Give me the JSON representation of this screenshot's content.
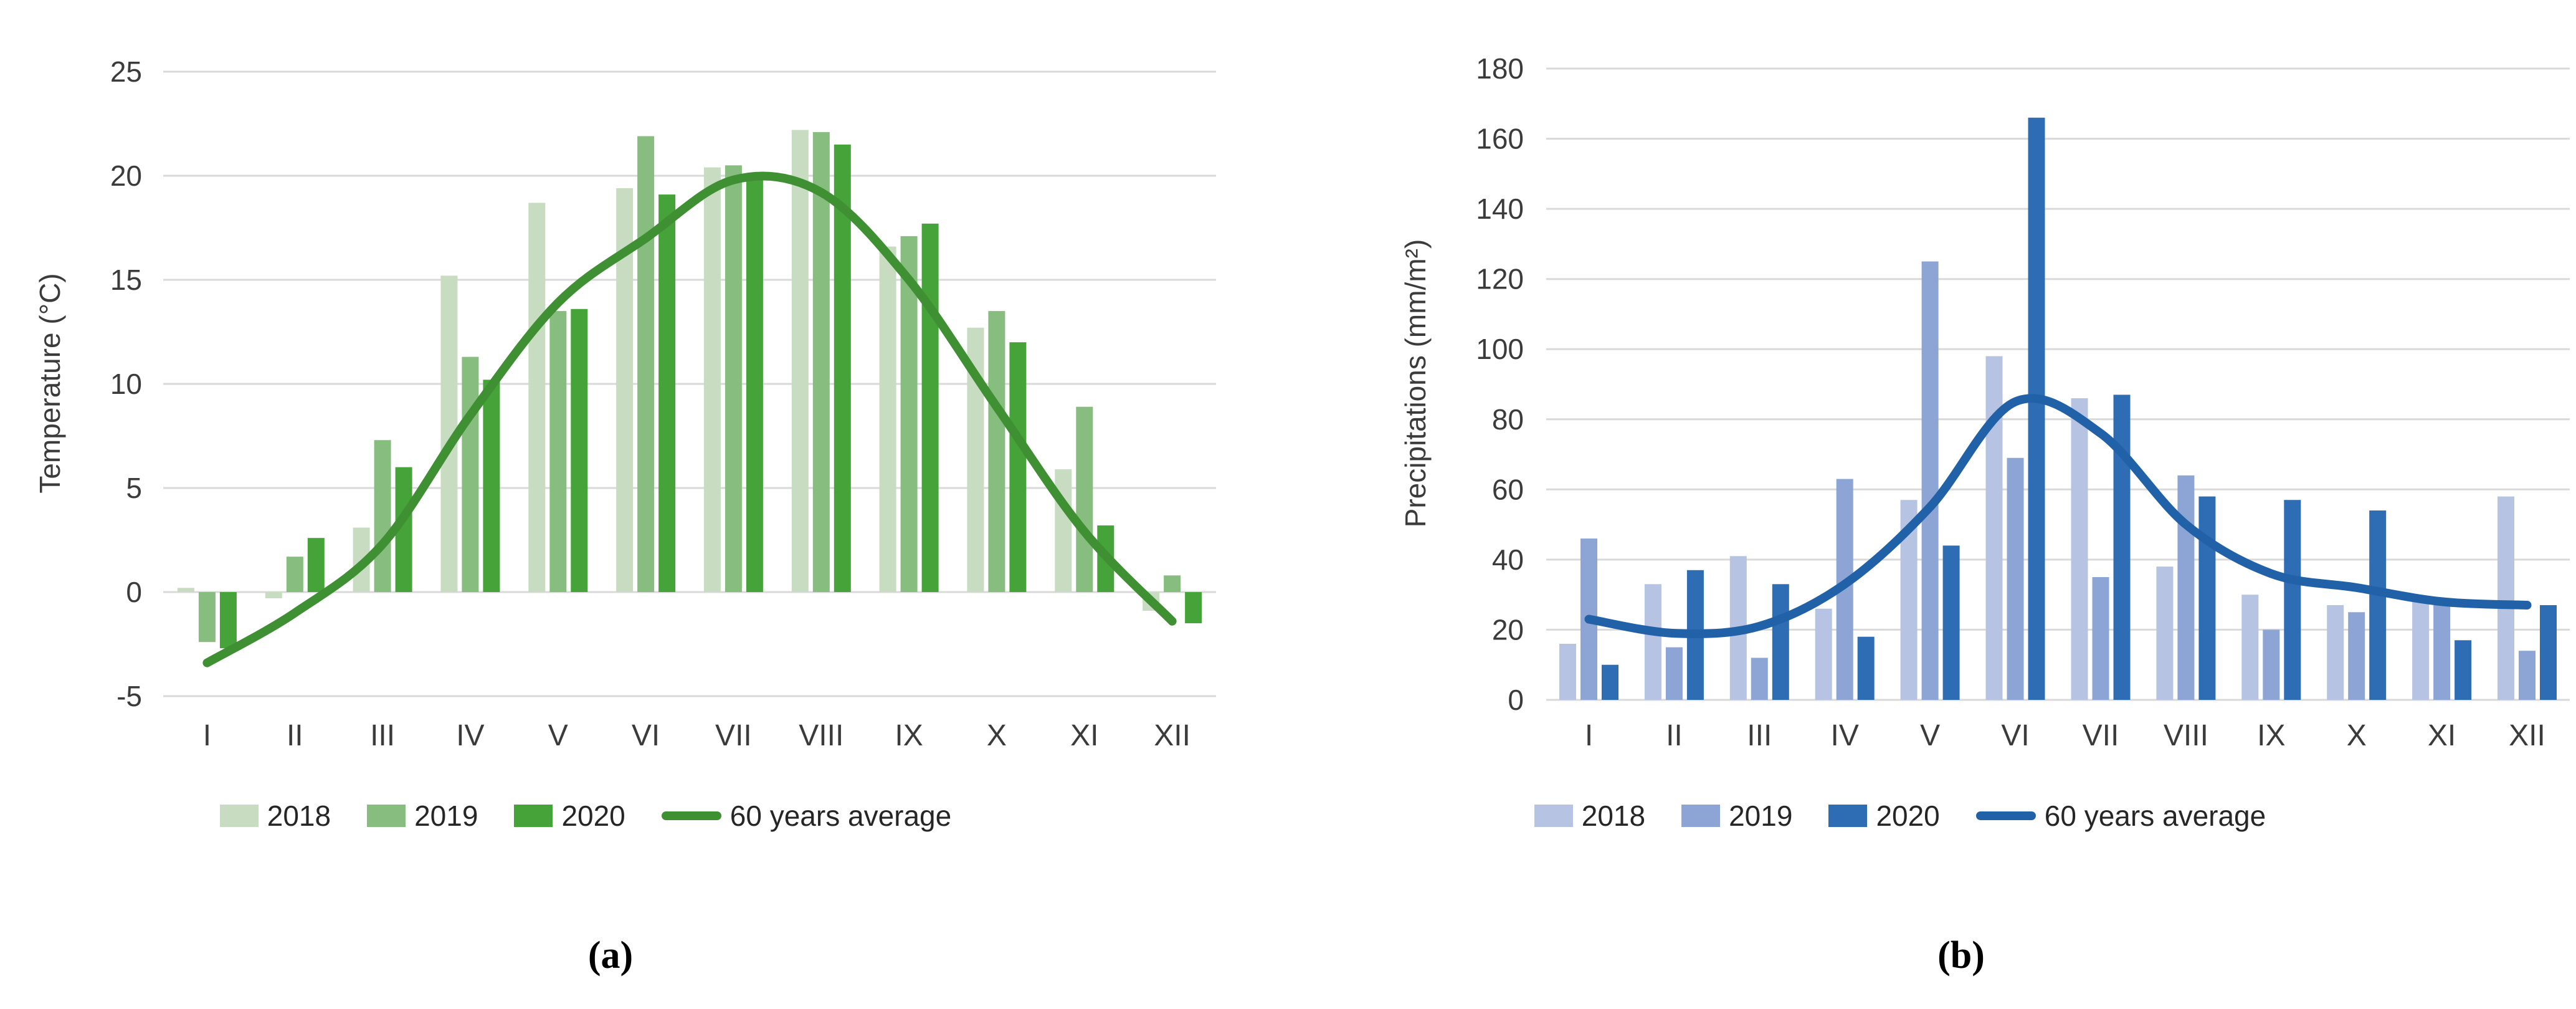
{
  "figure": {
    "caption_a": "(a)",
    "caption_b": "(b)"
  },
  "chart_data": [
    {
      "id": "a",
      "type": "bar+line",
      "title": "",
      "ylabel": "Temperature (°C)",
      "xlabel": "",
      "categories": [
        "I",
        "II",
        "III",
        "IV",
        "V",
        "VI",
        "VII",
        "VIII",
        "IX",
        "X",
        "XI",
        "XII"
      ],
      "yticks": [
        "25",
        "20",
        "15",
        "10",
        "5",
        "0",
        "-5"
      ],
      "ylim": [
        -5,
        25
      ],
      "ytick_step": 5,
      "grid": true,
      "legend_position": "bottom",
      "series": [
        {
          "name": "2018",
          "type": "bar",
          "color": "#c8dcc2",
          "values": [
            0.2,
            -0.3,
            3.1,
            15.2,
            18.7,
            19.4,
            20.4,
            22.2,
            16.6,
            12.7,
            5.9,
            -0.9
          ]
        },
        {
          "name": "2019",
          "type": "bar",
          "color": "#87bd7e",
          "values": [
            -2.4,
            1.7,
            7.3,
            11.3,
            13.5,
            21.9,
            20.5,
            22.1,
            17.1,
            13.5,
            8.9,
            0.8
          ]
        },
        {
          "name": "2020",
          "type": "bar",
          "color": "#45a339",
          "values": [
            -2.7,
            2.6,
            6.0,
            10.2,
            13.6,
            19.1,
            20.1,
            21.5,
            17.7,
            12.0,
            3.2,
            -1.5
          ]
        },
        {
          "name": "60 years average",
          "type": "line",
          "color": "#3f8f33",
          "values": [
            -3.4,
            -1.0,
            2.3,
            8.5,
            13.9,
            17.0,
            19.8,
            19.2,
            15.0,
            8.9,
            2.9,
            -1.4
          ]
        }
      ]
    },
    {
      "id": "b",
      "type": "bar+line",
      "title": "",
      "ylabel": "Precipitations (mm/m²)",
      "xlabel": "",
      "categories": [
        "I",
        "II",
        "III",
        "IV",
        "V",
        "VI",
        "VII",
        "VIII",
        "IX",
        "X",
        "XI",
        "XII"
      ],
      "yticks": [
        "180",
        "160",
        "140",
        "120",
        "100",
        "80",
        "60",
        "40",
        "20",
        "0"
      ],
      "ylim": [
        0,
        180
      ],
      "ytick_step": 20,
      "grid": true,
      "legend_position": "bottom",
      "series": [
        {
          "name": "2018",
          "type": "bar",
          "color": "#b7c3e2",
          "values": [
            16,
            33,
            41,
            26,
            57,
            98,
            86,
            38,
            30,
            27,
            29,
            58
          ]
        },
        {
          "name": "2019",
          "type": "bar",
          "color": "#8da5d4",
          "values": [
            46,
            15,
            12,
            63,
            125,
            69,
            35,
            64,
            20,
            25,
            27,
            14
          ]
        },
        {
          "name": "2020",
          "type": "bar",
          "color": "#2e6db4",
          "values": [
            10,
            37,
            33,
            18,
            44,
            166,
            87,
            58,
            57,
            54,
            17,
            27
          ]
        },
        {
          "name": "60 years average",
          "type": "line",
          "color": "#2161a8",
          "values": [
            23,
            19,
            21,
            33,
            55,
            85,
            76,
            50,
            36,
            32,
            28,
            27
          ]
        }
      ]
    }
  ]
}
